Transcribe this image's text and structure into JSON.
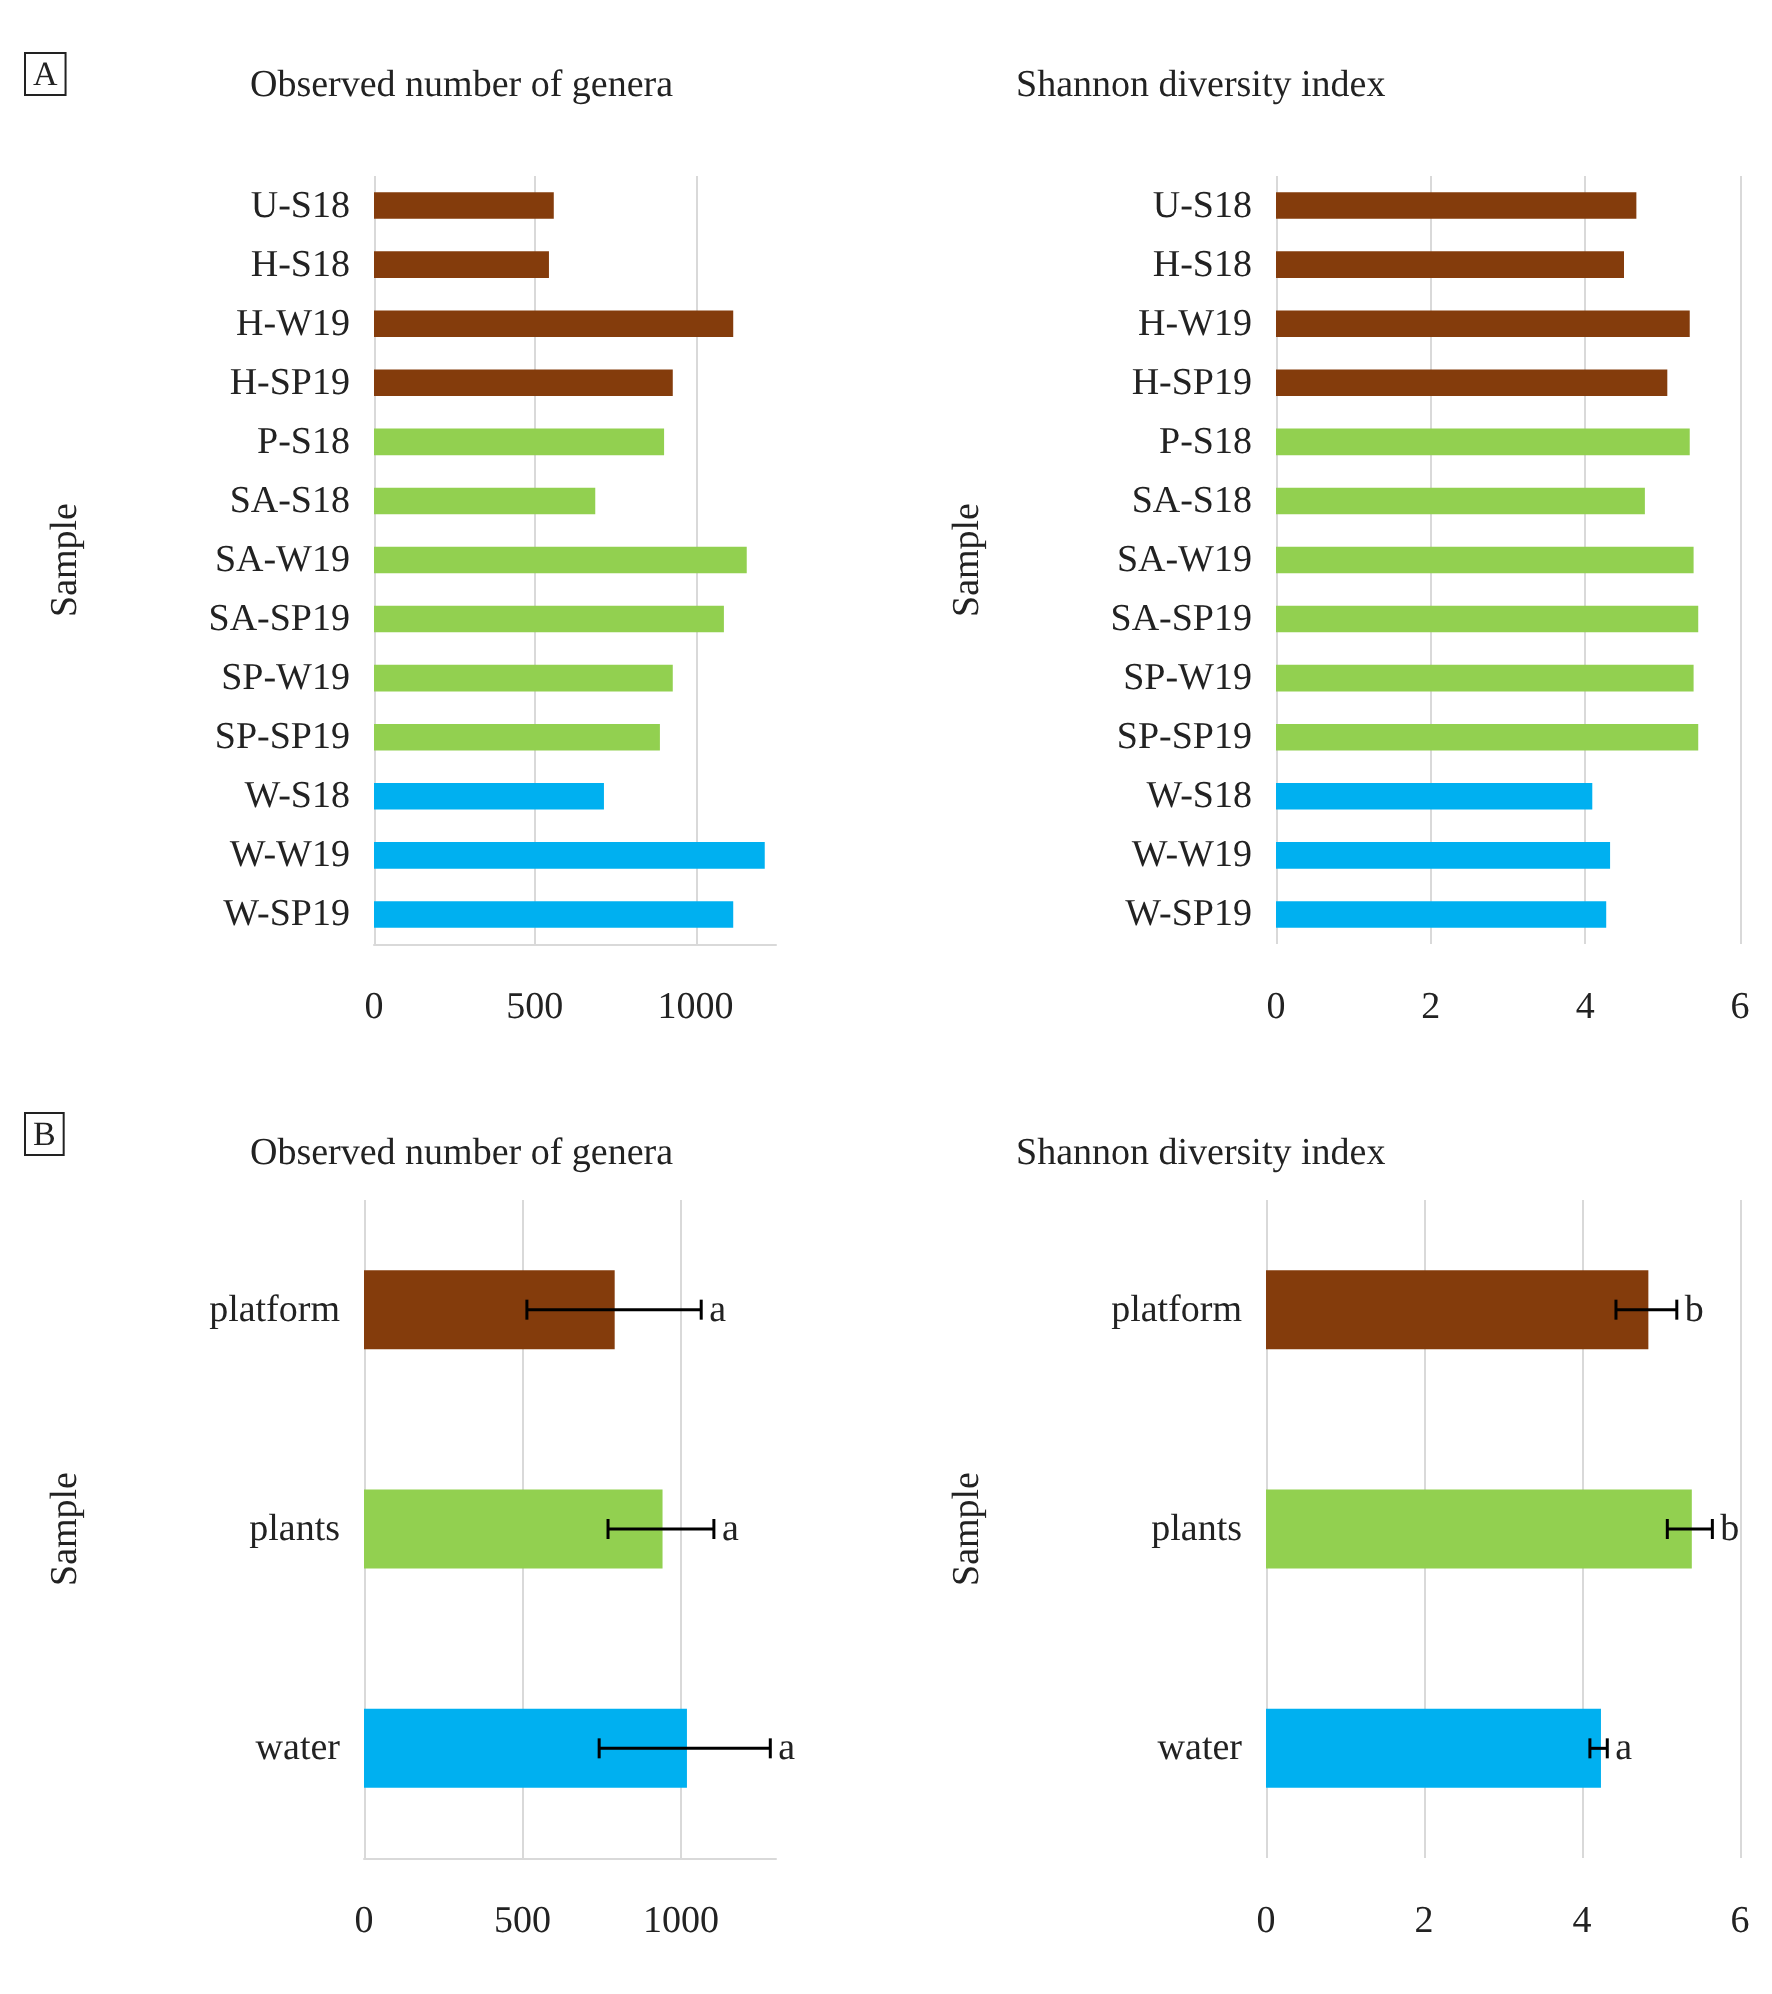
{
  "chart_data": [
    {
      "type": "bar",
      "orientation": "horizontal",
      "title": "Observed number of genera",
      "ylabel": "Sample",
      "annotations": [
        "A"
      ],
      "categories": [
        "U-S18",
        "H-S18",
        "H-W19",
        "H-SP19",
        "P-S18",
        "SA-S18",
        "SA-W19",
        "SA-SP19",
        "SP-W19",
        "SP-SP19",
        "W-S18",
        "W-W19",
        "W-SP19"
      ],
      "values": [
        559,
        544,
        1117,
        929,
        902,
        688,
        1159,
        1088,
        929,
        889,
        715,
        1215,
        1117
      ],
      "colors": [
        "#843c0c",
        "#843c0c",
        "#843c0c",
        "#843c0c",
        "#92d050",
        "#92d050",
        "#92d050",
        "#92d050",
        "#92d050",
        "#92d050",
        "#00b0f0",
        "#00b0f0",
        "#00b0f0"
      ],
      "xlim": [
        0,
        1250
      ],
      "xticks": [
        0,
        500,
        1000
      ],
      "grid": "x"
    },
    {
      "type": "bar",
      "orientation": "horizontal",
      "title": "Shannon diversity index",
      "ylabel": "Sample",
      "categories": [
        "U-S18",
        "H-S18",
        "H-W19",
        "H-SP19",
        "P-S18",
        "SA-S18",
        "SA-W19",
        "SA-SP19",
        "SP-W19",
        "SP-SP19",
        "W-S18",
        "W-W19",
        "W-SP19"
      ],
      "values": [
        4.66,
        4.5,
        5.35,
        5.06,
        5.35,
        4.77,
        5.4,
        5.46,
        5.4,
        5.46,
        4.09,
        4.32,
        4.27
      ],
      "colors": [
        "#843c0c",
        "#843c0c",
        "#843c0c",
        "#843c0c",
        "#92d050",
        "#92d050",
        "#92d050",
        "#92d050",
        "#92d050",
        "#92d050",
        "#00b0f0",
        "#00b0f0",
        "#00b0f0"
      ],
      "xlim": [
        0,
        6
      ],
      "xticks": [
        0,
        2,
        4,
        6
      ],
      "grid": "x"
    },
    {
      "type": "bar",
      "orientation": "horizontal",
      "title": "Observed number of genera",
      "ylabel": "Sample",
      "annotations": [
        "B",
        {
          "text": "a",
          "x": 1064,
          "y": "platform"
        },
        {
          "text": "a",
          "x": 1104,
          "y": "plants"
        },
        {
          "text": "a",
          "x": 1282,
          "y": "water"
        }
      ],
      "categories": [
        "platform",
        "plants",
        "water"
      ],
      "values": [
        791,
        942,
        1019
      ],
      "errors": [
        [
          514,
          1064
        ],
        [
          770,
          1104
        ],
        [
          742,
          1282
        ]
      ],
      "colors": [
        "#843c0c",
        "#92d050",
        "#00b0f0"
      ],
      "xlim": [
        0,
        1300
      ],
      "xticks": [
        0,
        500,
        1000
      ],
      "grid": "x"
    },
    {
      "type": "bar",
      "orientation": "horizontal",
      "title": "Shannon diversity index",
      "ylabel": "Sample",
      "annotations": [
        {
          "text": "b",
          "x": 5.2,
          "y": "platform"
        },
        {
          "text": "b",
          "x": 5.65,
          "y": "plants"
        },
        {
          "text": "a",
          "x": 4.32,
          "y": "water"
        }
      ],
      "categories": [
        "platform",
        "plants",
        "water"
      ],
      "values": [
        4.84,
        5.39,
        4.24
      ],
      "errors": [
        [
          4.43,
          5.2
        ],
        [
          5.08,
          5.65
        ],
        [
          4.1,
          4.32
        ]
      ],
      "colors": [
        "#843c0c",
        "#92d050",
        "#00b0f0"
      ],
      "xlim": [
        0,
        6
      ],
      "xticks": [
        0,
        2,
        4,
        6
      ],
      "grid": "x"
    }
  ]
}
